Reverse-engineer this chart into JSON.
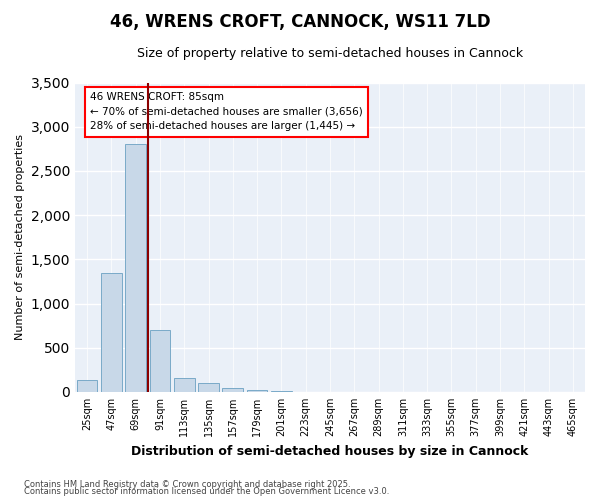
{
  "title": "46, WRENS CROFT, CANNOCK, WS11 7LD",
  "subtitle": "Size of property relative to semi-detached houses in Cannock",
  "xlabel": "Distribution of semi-detached houses by size in Cannock",
  "ylabel": "Number of semi-detached properties",
  "bins": [
    "25sqm",
    "47sqm",
    "69sqm",
    "91sqm",
    "113sqm",
    "135sqm",
    "157sqm",
    "179sqm",
    "201sqm",
    "223sqm",
    "245sqm",
    "267sqm",
    "289sqm",
    "311sqm",
    "333sqm",
    "355sqm",
    "377sqm",
    "399sqm",
    "421sqm",
    "443sqm",
    "465sqm"
  ],
  "values": [
    130,
    1350,
    2800,
    700,
    155,
    100,
    50,
    25,
    10,
    2,
    1,
    0,
    0,
    0,
    0,
    0,
    0,
    0,
    0,
    0,
    0
  ],
  "bar_color": "#c8d8e8",
  "bar_edge_color": "#7aaac8",
  "red_line_x": 2.5,
  "red_line_color": "#8b0000",
  "annotation_title": "46 WRENS CROFT: 85sqm",
  "annotation_line2": "← 70% of semi-detached houses are smaller (3,656)",
  "annotation_line3": "28% of semi-detached houses are larger (1,445) →",
  "ylim": [
    0,
    3500
  ],
  "yticks": [
    0,
    500,
    1000,
    1500,
    2000,
    2500,
    3000,
    3500
  ],
  "bg_color": "#eaf0f8",
  "footer1": "Contains HM Land Registry data © Crown copyright and database right 2025.",
  "footer2": "Contains public sector information licensed under the Open Government Licence v3.0."
}
